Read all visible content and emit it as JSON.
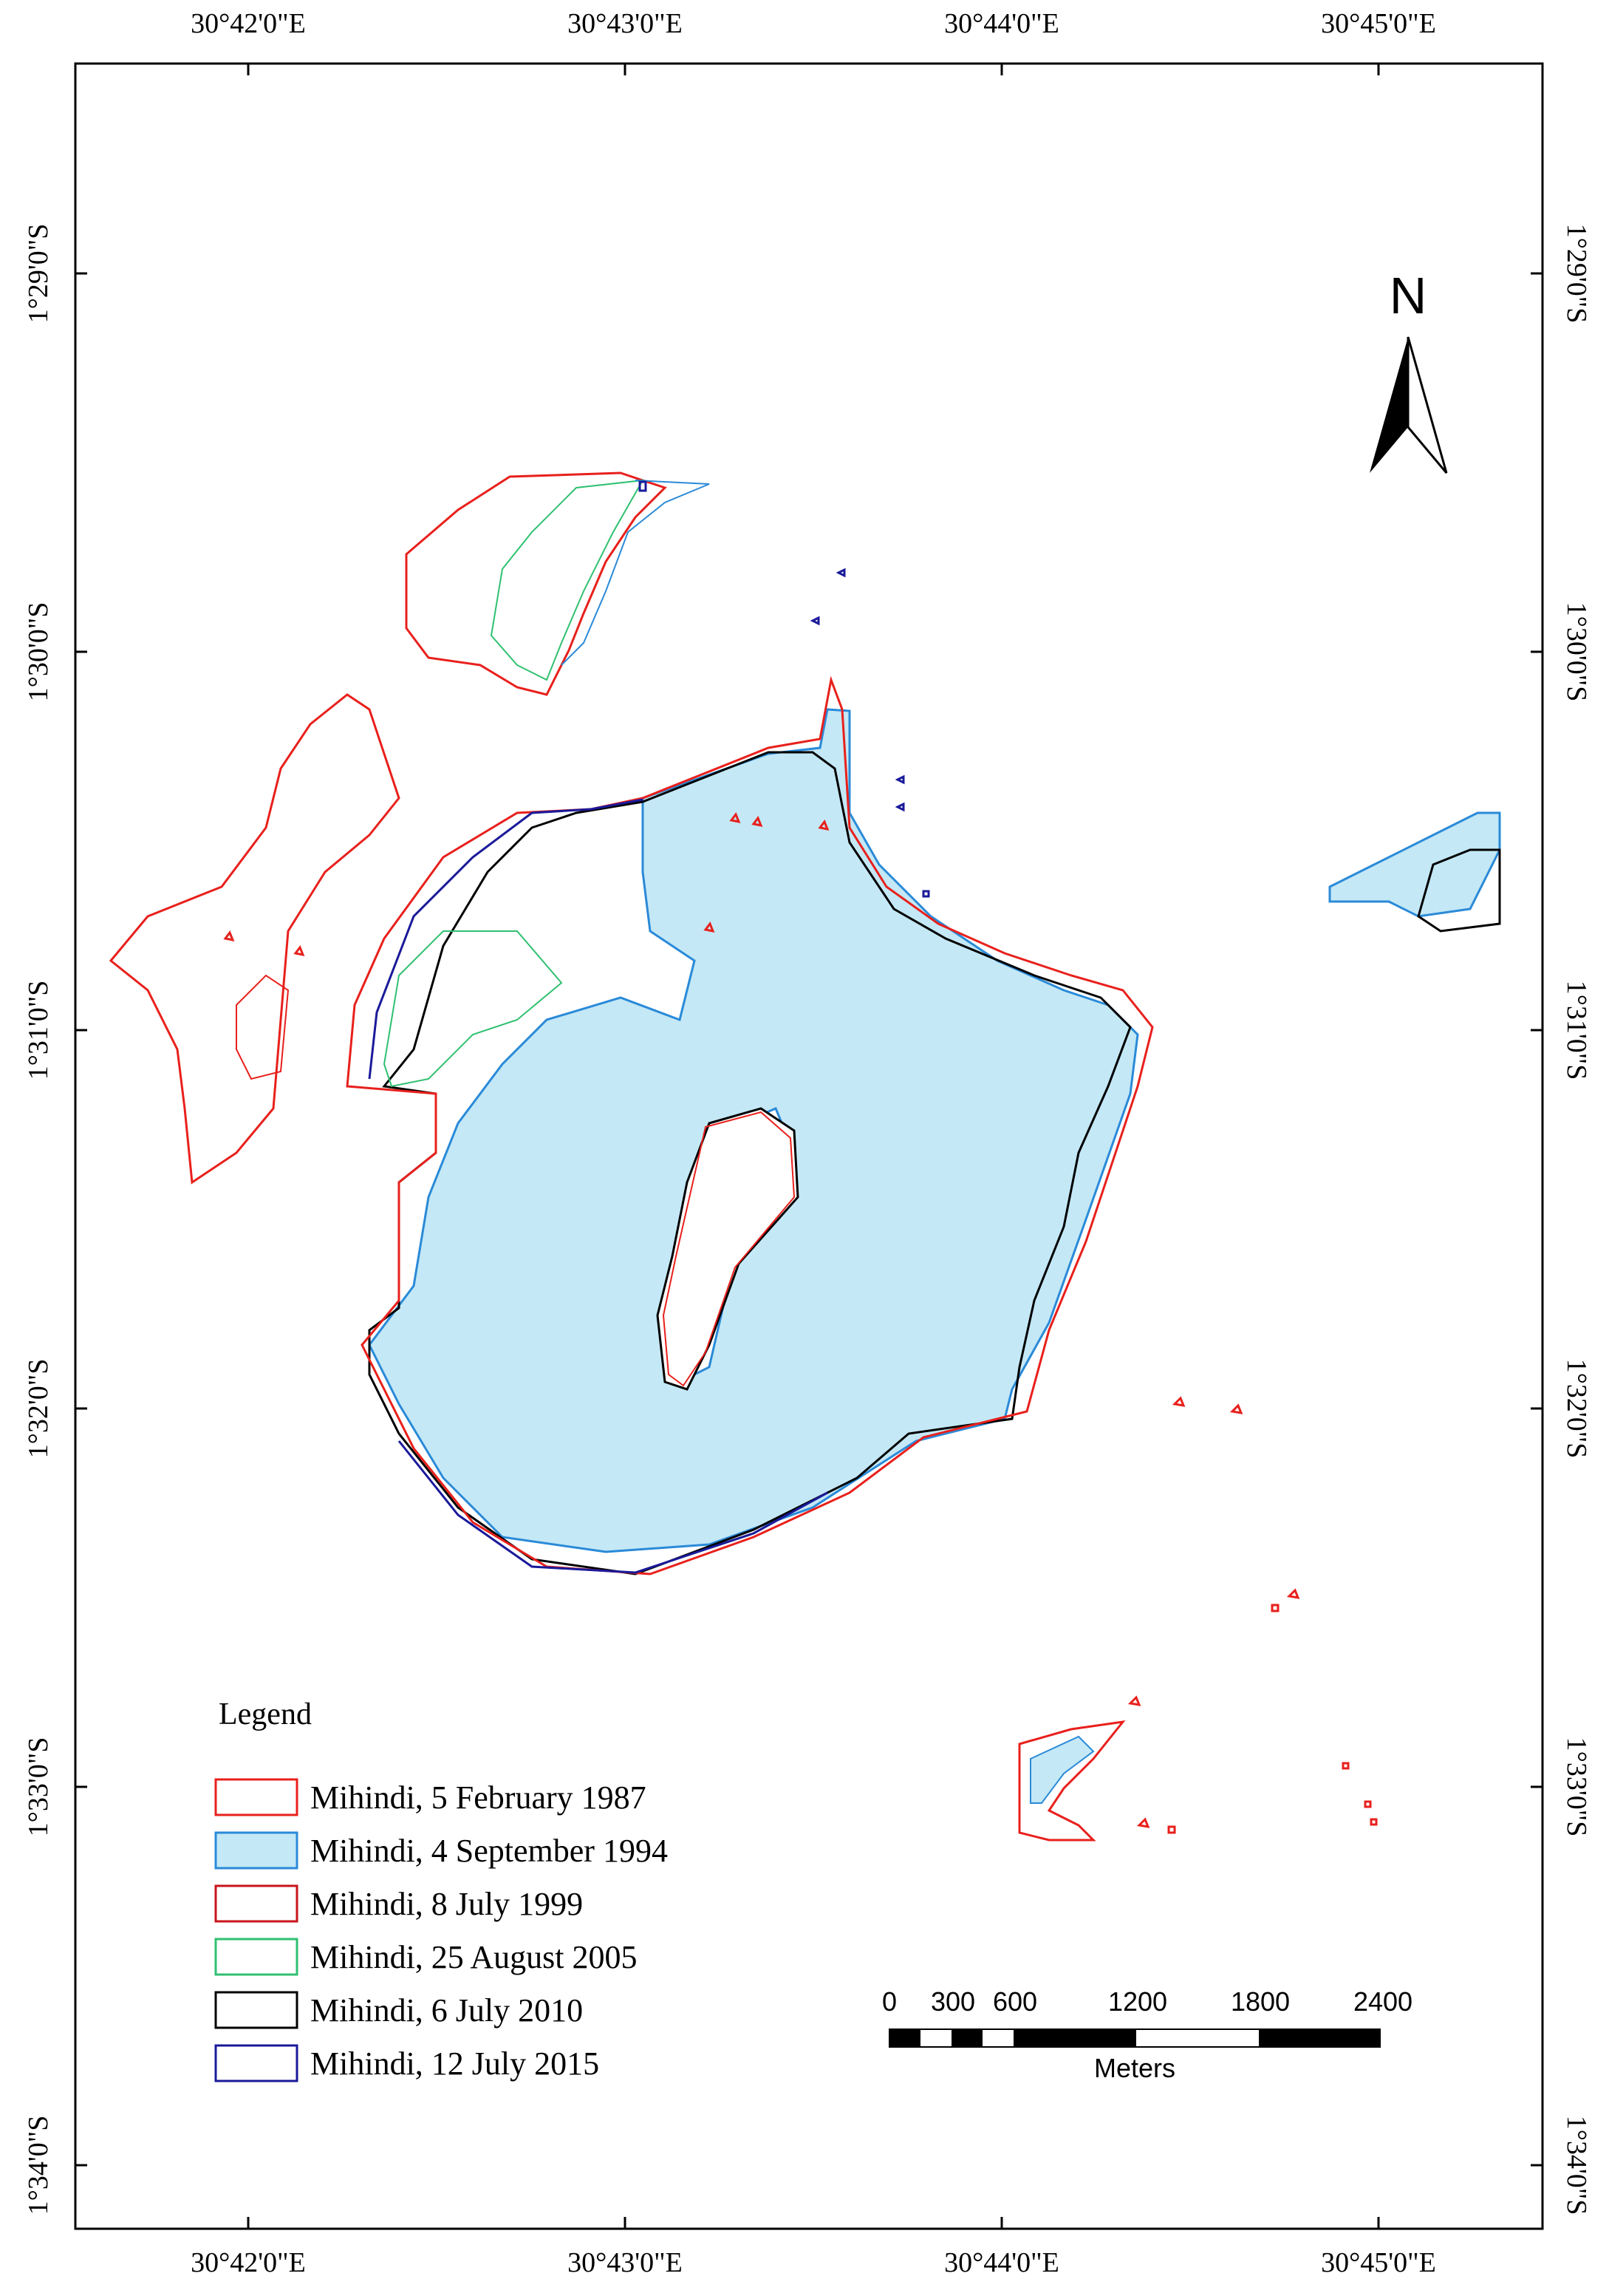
{
  "map": {
    "top_labels": [
      "30°42'0\"E",
      "30°43'0\"E",
      "30°44'0\"E",
      "30°45'0\"E"
    ],
    "bottom_labels": [
      "30°42'0\"E",
      "30°43'0\"E",
      "30°44'0\"E",
      "30°45'0\"E"
    ],
    "left_labels": [
      "1°29'0\"S",
      "1°30'0\"S",
      "1°31'0\"S",
      "1°32'0\"S",
      "1°33'0\"S",
      "1°34'0\"S"
    ],
    "right_labels": [
      "1°29'0\"S",
      "1°30'0\"S",
      "1°31'0\"S",
      "1°32'0\"S",
      "1°33'0\"S",
      "1°34'0\"S"
    ],
    "north_arrow": "N"
  },
  "legend": {
    "title": "Legend",
    "items": [
      {
        "label": "Mihindi, 5 February 1987",
        "stroke": "#e8201c",
        "fill": "none"
      },
      {
        "label": "Mihindi, 4 September 1994",
        "stroke": "#2a8ad8",
        "fill": "#c4e8f6"
      },
      {
        "label": "Mihindi, 8 July 1999",
        "stroke": "#c8141c",
        "fill": "none"
      },
      {
        "label": "Mihindi, 25 August 2005",
        "stroke": "#2fc070",
        "fill": "none"
      },
      {
        "label": "Mihindi, 6 July 2010",
        "stroke": "#000000",
        "fill": "none"
      },
      {
        "label": "Mihindi, 12 July 2015",
        "stroke": "#1a1a9a",
        "fill": "none"
      }
    ]
  },
  "scale_bar": {
    "ticks": [
      "0",
      "300",
      "600",
      "1200",
      "1800",
      "2400"
    ],
    "unit": "Meters"
  }
}
